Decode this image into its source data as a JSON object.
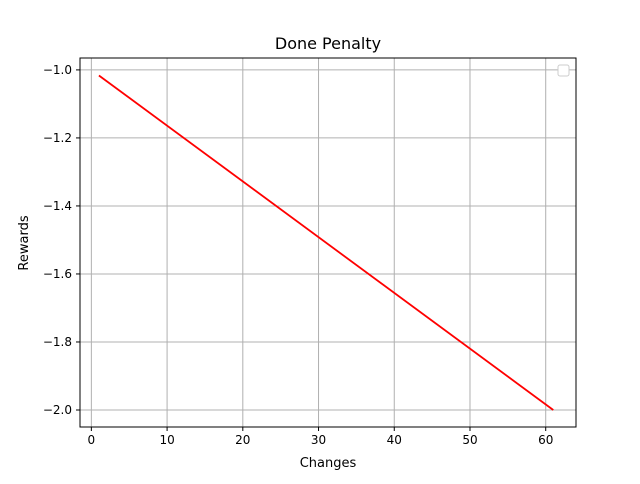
{
  "chart_data": {
    "type": "line",
    "title": "Done Penalty",
    "xlabel": "Changes",
    "ylabel": "Rewards",
    "xlim": [
      -1.5,
      64
    ],
    "ylim": [
      -2.05,
      -0.965
    ],
    "x_ticks": [
      0,
      10,
      20,
      30,
      40,
      50,
      60
    ],
    "x_tick_labels": [
      "0",
      "10",
      "20",
      "30",
      "40",
      "50",
      "60"
    ],
    "y_ticks": [
      -2.0,
      -1.8,
      -1.6,
      -1.4,
      -1.2,
      -1.0
    ],
    "y_tick_labels": [
      "−2.0",
      "−1.8",
      "−1.6",
      "−1.4",
      "−1.2",
      "−1.0"
    ],
    "grid": true,
    "legend": {
      "placement": "top-right",
      "entries": []
    },
    "series": [
      {
        "color": "#ff0000",
        "x": [
          1,
          61
        ],
        "y": [
          -1.0164,
          -2.0
        ]
      }
    ]
  }
}
